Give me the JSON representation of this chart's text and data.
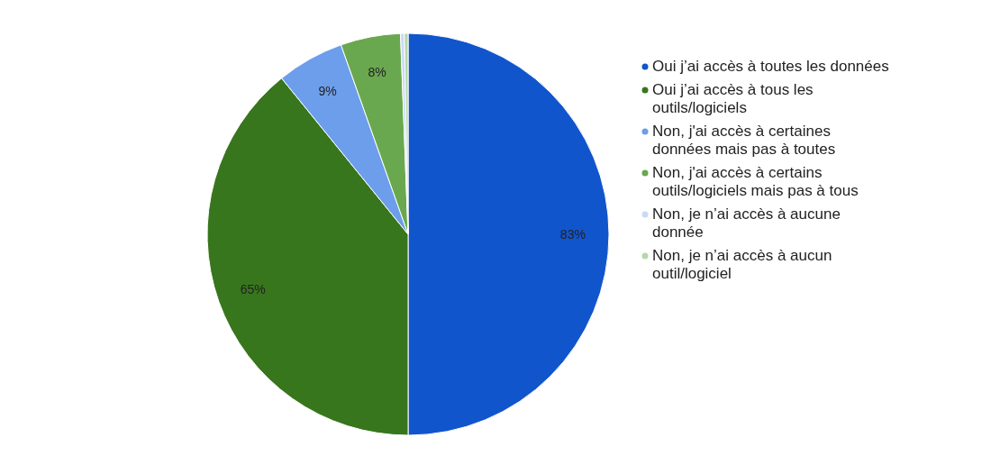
{
  "chart_data": {
    "type": "pie",
    "categories": [
      "Oui j’ai accès à toutes les données",
      "Oui j’ai accès à tous les outils/logiciels",
      "Non, j'ai accès à certaines données mais pas à toutes",
      "Non, j'ai accès à certains outils/logiciels mais pas à tous",
      "Non, je n’ai accès à aucune donnée",
      "Non, je n’ai accès à aucun outil/logiciel"
    ],
    "values": [
      83,
      65,
      9,
      8,
      0.5,
      0.5
    ],
    "colors": [
      "#1155cc",
      "#38761d",
      "#6d9eeb",
      "#6aa84f",
      "#c9daf8",
      "#b6d7a8"
    ],
    "value_labels": [
      "83%",
      "65%",
      "9%",
      "8%",
      null,
      null
    ],
    "legend": "right"
  }
}
